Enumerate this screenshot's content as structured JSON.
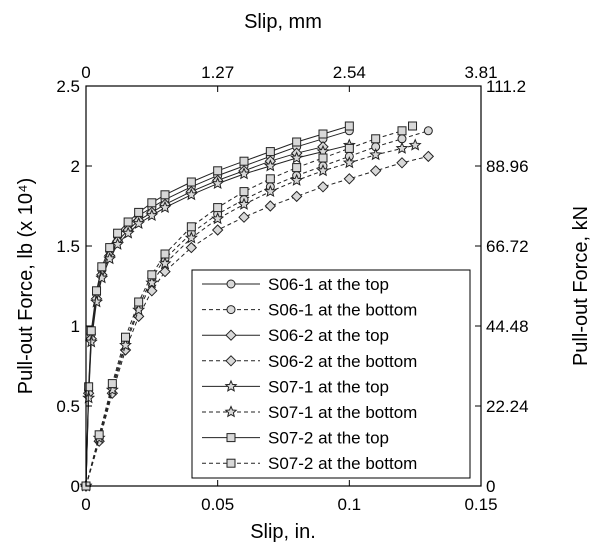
{
  "chart_data": {
    "type": "line",
    "xlabel": "Slip, in.",
    "x2label": "Slip, mm",
    "ylabel": "Pull-out Force, lb (x 10⁴)",
    "y2label": "Pull-out Force, kN",
    "xlim": [
      0,
      0.15
    ],
    "ylim": [
      0,
      2.5
    ],
    "x_ticks": [
      "0",
      "0.05",
      "0.1",
      "0.15"
    ],
    "y_ticks": [
      "0",
      "0.5",
      "1",
      "1.5",
      "2",
      "2.5"
    ],
    "x2_ticks": [
      "0",
      "1.27",
      "2.54",
      "3.81"
    ],
    "y2_ticks": [
      "0",
      "22.24",
      "44.48",
      "66.72",
      "88.96",
      "111.2"
    ],
    "grid": false,
    "legend_position": "bottom-right",
    "series": [
      {
        "name": "S06-1 at the top",
        "marker": "circle",
        "dash": "solid",
        "x": [
          0,
          0.001,
          0.002,
          0.004,
          0.006,
          0.009,
          0.012,
          0.016,
          0.02,
          0.025,
          0.03,
          0.04,
          0.05,
          0.06,
          0.07,
          0.08,
          0.09,
          0.1
        ],
        "y": [
          0,
          0.6,
          0.95,
          1.2,
          1.35,
          1.47,
          1.56,
          1.63,
          1.69,
          1.74,
          1.79,
          1.87,
          1.94,
          2.0,
          2.06,
          2.12,
          2.17,
          2.22
        ]
      },
      {
        "name": "S06-1 at the bottom",
        "marker": "circle",
        "dash": "dashed",
        "x": [
          0,
          0.005,
          0.01,
          0.015,
          0.02,
          0.025,
          0.03,
          0.04,
          0.05,
          0.06,
          0.07,
          0.08,
          0.09,
          0.1,
          0.11,
          0.12,
          0.13
        ],
        "y": [
          0,
          0.3,
          0.62,
          0.9,
          1.12,
          1.3,
          1.42,
          1.58,
          1.7,
          1.79,
          1.87,
          1.94,
          2.0,
          2.06,
          2.12,
          2.17,
          2.22
        ]
      },
      {
        "name": "S06-2 at the top",
        "marker": "diamond",
        "dash": "solid",
        "x": [
          0,
          0.001,
          0.002,
          0.004,
          0.006,
          0.009,
          0.012,
          0.016,
          0.02,
          0.025,
          0.03,
          0.04,
          0.05,
          0.06,
          0.07,
          0.08,
          0.09
        ],
        "y": [
          0,
          0.58,
          0.92,
          1.17,
          1.32,
          1.44,
          1.53,
          1.6,
          1.66,
          1.71,
          1.76,
          1.84,
          1.91,
          1.97,
          2.03,
          2.08,
          2.12
        ]
      },
      {
        "name": "S06-2 at the bottom",
        "marker": "diamond",
        "dash": "dashed",
        "x": [
          0,
          0.005,
          0.01,
          0.015,
          0.02,
          0.025,
          0.03,
          0.04,
          0.05,
          0.06,
          0.07,
          0.08,
          0.09,
          0.1,
          0.11,
          0.12,
          0.13
        ],
        "y": [
          0,
          0.28,
          0.58,
          0.85,
          1.06,
          1.22,
          1.34,
          1.49,
          1.6,
          1.68,
          1.75,
          1.81,
          1.87,
          1.92,
          1.97,
          2.02,
          2.06
        ]
      },
      {
        "name": "S07-1 at the top",
        "marker": "star",
        "dash": "solid",
        "x": [
          0,
          0.001,
          0.002,
          0.004,
          0.006,
          0.009,
          0.012,
          0.016,
          0.02,
          0.025,
          0.03,
          0.04,
          0.05,
          0.06,
          0.07,
          0.08,
          0.09,
          0.1
        ],
        "y": [
          0,
          0.55,
          0.9,
          1.15,
          1.3,
          1.42,
          1.51,
          1.58,
          1.64,
          1.69,
          1.74,
          1.82,
          1.89,
          1.95,
          2.0,
          2.05,
          2.09,
          2.13
        ]
      },
      {
        "name": "S07-1 at the bottom",
        "marker": "star",
        "dash": "dashed",
        "x": [
          0,
          0.005,
          0.01,
          0.015,
          0.02,
          0.025,
          0.03,
          0.04,
          0.05,
          0.06,
          0.07,
          0.08,
          0.09,
          0.1,
          0.11,
          0.12,
          0.125
        ],
        "y": [
          0,
          0.3,
          0.6,
          0.88,
          1.1,
          1.27,
          1.39,
          1.55,
          1.67,
          1.76,
          1.84,
          1.91,
          1.97,
          2.02,
          2.07,
          2.11,
          2.13
        ]
      },
      {
        "name": "S07-2 at the top",
        "marker": "square",
        "dash": "solid",
        "x": [
          0,
          0.001,
          0.002,
          0.004,
          0.006,
          0.009,
          0.012,
          0.016,
          0.02,
          0.025,
          0.03,
          0.04,
          0.05,
          0.06,
          0.07,
          0.08,
          0.09,
          0.1
        ],
        "y": [
          0,
          0.62,
          0.97,
          1.22,
          1.37,
          1.49,
          1.58,
          1.65,
          1.71,
          1.77,
          1.82,
          1.9,
          1.97,
          2.03,
          2.09,
          2.15,
          2.2,
          2.25
        ]
      },
      {
        "name": "S07-2 at the bottom",
        "marker": "square",
        "dash": "dashed",
        "x": [
          0,
          0.005,
          0.01,
          0.015,
          0.02,
          0.025,
          0.03,
          0.04,
          0.05,
          0.06,
          0.07,
          0.08,
          0.09,
          0.1,
          0.11,
          0.12,
          0.124
        ],
        "y": [
          0,
          0.32,
          0.64,
          0.93,
          1.15,
          1.32,
          1.45,
          1.62,
          1.74,
          1.84,
          1.92,
          1.99,
          2.05,
          2.11,
          2.17,
          2.22,
          2.25
        ]
      }
    ]
  }
}
